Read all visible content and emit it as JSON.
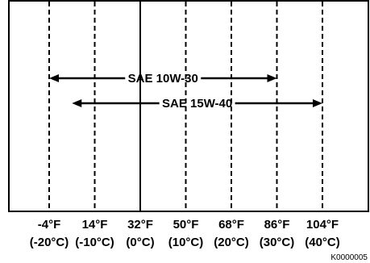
{
  "axis": {
    "ticks": [
      {
        "f": "-4°F",
        "c": "(-20°C)",
        "style": "dashed"
      },
      {
        "f": "14°F",
        "c": "(-10°C)",
        "style": "dashed"
      },
      {
        "f": "32°F",
        "c": "(0°C)",
        "style": "solid"
      },
      {
        "f": "50°F",
        "c": "(10°C)",
        "style": "dashed"
      },
      {
        "f": "68°F",
        "c": "(20°C)",
        "style": "dashed"
      },
      {
        "f": "86°F",
        "c": "(30°C)",
        "style": "dashed"
      },
      {
        "f": "104°F",
        "c": "(40°C)",
        "style": "dashed"
      }
    ],
    "unit": "°F"
  },
  "ranges": [
    {
      "label": "SAE 10W-30",
      "from_f": -4,
      "to_f": 86
    },
    {
      "label": "SAE 15W-40",
      "from_f": 5,
      "to_f": 104
    }
  ],
  "reference_code": "K0000005",
  "colors": {
    "line": "#000000",
    "background": "#ffffff"
  }
}
